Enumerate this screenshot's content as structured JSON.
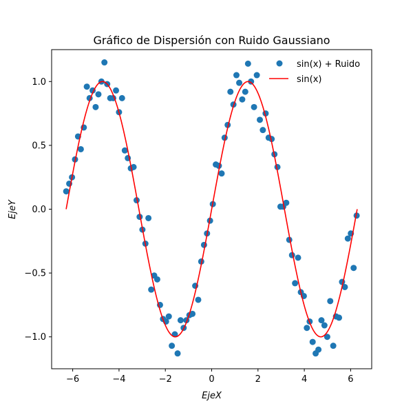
{
  "chart_data": {
    "type": "scatter",
    "title": "Gráfico de Dispersión con Ruido Gaussiano",
    "xlabel": "EjeX",
    "ylabel": "EjeY",
    "xlim": [
      -6.91,
      6.91
    ],
    "ylim": [
      -1.25,
      1.25
    ],
    "xticks": [
      -6,
      -4,
      -2,
      0,
      2,
      4,
      6
    ],
    "xtick_labels": [
      "−6",
      "−4",
      "−2",
      "0",
      "2",
      "4",
      "6"
    ],
    "yticks": [
      -1.0,
      -0.5,
      0.0,
      0.5,
      1.0
    ],
    "ytick_labels": [
      "−1.0",
      "−0.5",
      "0.0",
      "0.5",
      "1.0"
    ],
    "grid": false,
    "legend": "top-right",
    "series": [
      {
        "name": "sin(x) + Ruido",
        "kind": "scatter",
        "color": "#1f77b4",
        "points": [
          [
            -6.28,
            0.14
          ],
          [
            -6.15,
            0.2
          ],
          [
            -6.03,
            0.25
          ],
          [
            -5.9,
            0.39
          ],
          [
            -5.77,
            0.57
          ],
          [
            -5.65,
            0.47
          ],
          [
            -5.52,
            0.64
          ],
          [
            -5.39,
            0.96
          ],
          [
            -5.27,
            0.87
          ],
          [
            -5.14,
            0.93
          ],
          [
            -5.01,
            0.8
          ],
          [
            -4.89,
            0.9
          ],
          [
            -4.76,
            1.0
          ],
          [
            -4.63,
            1.15
          ],
          [
            -4.51,
            0.98
          ],
          [
            -4.38,
            0.87
          ],
          [
            -4.25,
            0.87
          ],
          [
            -4.13,
            0.93
          ],
          [
            -4.0,
            0.76
          ],
          [
            -3.87,
            0.87
          ],
          [
            -3.75,
            0.46
          ],
          [
            -3.62,
            0.4
          ],
          [
            -3.49,
            0.32
          ],
          [
            -3.37,
            0.33
          ],
          [
            -3.24,
            0.07
          ],
          [
            -3.11,
            -0.06
          ],
          [
            -2.99,
            -0.16
          ],
          [
            -2.86,
            -0.27
          ],
          [
            -2.73,
            -0.07
          ],
          [
            -2.61,
            -0.63
          ],
          [
            -2.48,
            -0.52
          ],
          [
            -2.35,
            -0.55
          ],
          [
            -2.23,
            -0.75
          ],
          [
            -2.1,
            -0.86
          ],
          [
            -1.97,
            -0.88
          ],
          [
            -1.85,
            -0.84
          ],
          [
            -1.72,
            -1.07
          ],
          [
            -1.59,
            -0.98
          ],
          [
            -1.47,
            -1.13
          ],
          [
            -1.34,
            -0.87
          ],
          [
            -1.21,
            -0.93
          ],
          [
            -1.09,
            -0.87
          ],
          [
            -0.96,
            -0.83
          ],
          [
            -0.83,
            -0.82
          ],
          [
            -0.71,
            -0.6
          ],
          [
            -0.58,
            -0.71
          ],
          [
            -0.45,
            -0.41
          ],
          [
            -0.33,
            -0.28
          ],
          [
            -0.2,
            -0.19
          ],
          [
            -0.07,
            -0.09
          ],
          [
            0.05,
            0.04
          ],
          [
            0.18,
            0.35
          ],
          [
            0.31,
            0.34
          ],
          [
            0.43,
            0.28
          ],
          [
            0.56,
            0.56
          ],
          [
            0.69,
            0.66
          ],
          [
            0.81,
            0.92
          ],
          [
            0.94,
            0.82
          ],
          [
            1.07,
            1.05
          ],
          [
            1.19,
            0.99
          ],
          [
            1.32,
            0.86
          ],
          [
            1.45,
            0.92
          ],
          [
            1.57,
            1.14
          ],
          [
            1.7,
            1.0
          ],
          [
            1.83,
            0.8
          ],
          [
            1.95,
            1.05
          ],
          [
            2.08,
            0.7
          ],
          [
            2.21,
            0.62
          ],
          [
            2.33,
            0.75
          ],
          [
            2.46,
            0.56
          ],
          [
            2.59,
            0.55
          ],
          [
            2.71,
            0.43
          ],
          [
            2.84,
            0.33
          ],
          [
            2.97,
            0.02
          ],
          [
            3.09,
            0.02
          ],
          [
            3.22,
            0.05
          ],
          [
            3.35,
            -0.24
          ],
          [
            3.47,
            -0.36
          ],
          [
            3.6,
            -0.58
          ],
          [
            3.73,
            -0.38
          ],
          [
            3.85,
            -0.65
          ],
          [
            3.98,
            -0.68
          ],
          [
            4.11,
            -0.93
          ],
          [
            4.23,
            -0.88
          ],
          [
            4.36,
            -1.04
          ],
          [
            4.49,
            -1.13
          ],
          [
            4.61,
            -1.1
          ],
          [
            4.74,
            -0.87
          ],
          [
            4.87,
            -0.91
          ],
          [
            4.99,
            -1.0
          ],
          [
            5.12,
            -0.72
          ],
          [
            5.25,
            -1.07
          ],
          [
            5.37,
            -0.84
          ],
          [
            5.5,
            -0.85
          ],
          [
            5.63,
            -0.57
          ],
          [
            5.75,
            -0.61
          ],
          [
            5.88,
            -0.23
          ],
          [
            6.01,
            -0.19
          ],
          [
            6.13,
            -0.46
          ],
          [
            6.26,
            -0.05
          ]
        ]
      },
      {
        "name": "sin(x)",
        "kind": "line",
        "color": "#ff0000",
        "function": "sin",
        "x_range": [
          -6.283185,
          6.283185
        ]
      }
    ]
  }
}
